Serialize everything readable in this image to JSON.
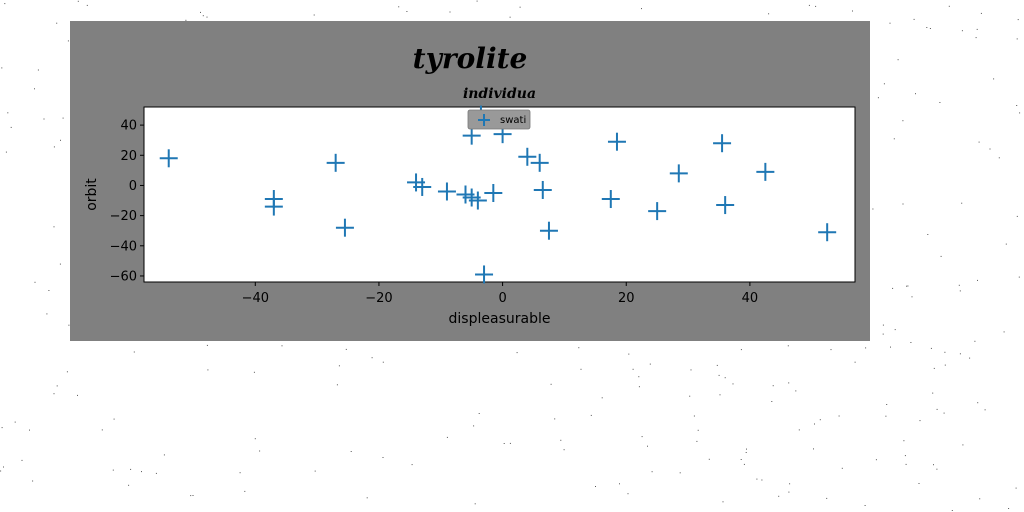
{
  "figure": {
    "suptitle": "tyrolite",
    "background": "#808080",
    "page_background": "#ffffff"
  },
  "chart_data": {
    "type": "scatter",
    "title": "individua",
    "xlabel": "displeasurable",
    "ylabel": "orbit",
    "xlim": [
      -58,
      57
    ],
    "ylim": [
      -64,
      52
    ],
    "xticks": [
      -40,
      -20,
      0,
      20,
      40
    ],
    "yticks": [
      -60,
      -40,
      -20,
      0,
      20,
      40
    ],
    "xtick_labels": [
      "−40",
      "−20",
      "0",
      "20",
      "40"
    ],
    "ytick_labels": [
      "−60",
      "−40",
      "−20",
      "0",
      "20",
      "40"
    ],
    "grid": false,
    "legend_position": "top-center",
    "marker": "+",
    "series": [
      {
        "name": "swati",
        "color": "#1f77b4",
        "points": [
          {
            "x": -54,
            "y": 18
          },
          {
            "x": -37,
            "y": -9
          },
          {
            "x": -37,
            "y": -14
          },
          {
            "x": -27,
            "y": 15
          },
          {
            "x": -25.5,
            "y": -28
          },
          {
            "x": -14,
            "y": 2
          },
          {
            "x": -13,
            "y": -1
          },
          {
            "x": -9,
            "y": -4
          },
          {
            "x": -6,
            "y": -6
          },
          {
            "x": -5,
            "y": -8
          },
          {
            "x": -5,
            "y": 33
          },
          {
            "x": -4,
            "y": -10
          },
          {
            "x": -3.5,
            "y": 47
          },
          {
            "x": -3,
            "y": -59
          },
          {
            "x": -1.5,
            "y": -5
          },
          {
            "x": 0,
            "y": 34
          },
          {
            "x": 4,
            "y": 19
          },
          {
            "x": 6,
            "y": 15
          },
          {
            "x": 6.5,
            "y": -3
          },
          {
            "x": 7.5,
            "y": -30
          },
          {
            "x": 17.5,
            "y": -9
          },
          {
            "x": 18.5,
            "y": 29
          },
          {
            "x": 25,
            "y": -17
          },
          {
            "x": 28.5,
            "y": 8
          },
          {
            "x": 35.5,
            "y": 28
          },
          {
            "x": 36,
            "y": -13
          },
          {
            "x": 42.5,
            "y": 9
          },
          {
            "x": 52.5,
            "y": -31
          }
        ]
      }
    ]
  }
}
